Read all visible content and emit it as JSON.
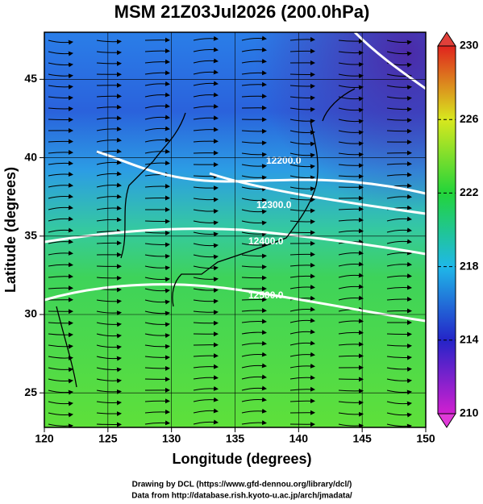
{
  "title": "MSM 21Z03Jul2026 (200.0hPa)",
  "x_axis": {
    "label": "Longitude (degrees)",
    "lim": [
      120,
      150
    ],
    "ticks": [
      120,
      125,
      130,
      135,
      140,
      145,
      150
    ]
  },
  "y_axis": {
    "label": "Latitude  (degrees)",
    "lim": [
      22.8,
      48
    ],
    "ticks": [
      25,
      30,
      35,
      40,
      45
    ]
  },
  "colorbar": {
    "lim": [
      210,
      230
    ],
    "ticks": [
      210,
      214,
      218,
      222,
      226,
      230
    ]
  },
  "contour_labels": [
    "12200.0",
    "12300.0",
    "12400.0",
    "12500.0"
  ],
  "footer": [
    "Drawing by DCL (https://www.gfd-dennou.org/library/dcl/)",
    "Data from http://database.rish.kyoto-u.ac.jp/arch/jmadata/"
  ]
}
